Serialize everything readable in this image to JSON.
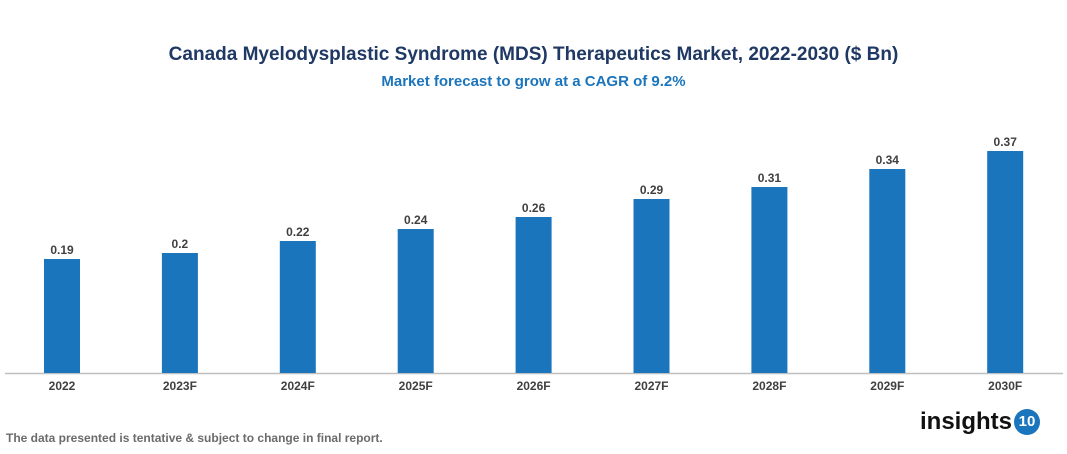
{
  "chart_data": {
    "type": "bar",
    "title": "Canada Myelodysplastic Syndrome (MDS) Therapeutics Market, 2022-2030 ($ Bn)",
    "subtitle": "Market forecast to grow at a CAGR of 9.2%",
    "categories": [
      "2022",
      "2023F",
      "2024F",
      "2025F",
      "2026F",
      "2027F",
      "2028F",
      "2029F",
      "2030F"
    ],
    "values": [
      0.19,
      0.2,
      0.22,
      0.24,
      0.26,
      0.29,
      0.31,
      0.34,
      0.37
    ],
    "labels": [
      "0.19",
      "0.2",
      "0.22",
      "0.24",
      "0.26",
      "0.29",
      "0.31",
      "0.34",
      "0.37"
    ],
    "xlabel": "",
    "ylabel": "",
    "ylim": [
      0,
      0.4
    ],
    "grid": false,
    "bar_color": "#1b75bc"
  },
  "footer": {
    "disclaimer": "The data presented is tentative & subject to change in final report."
  },
  "logo": {
    "text": "insights",
    "number": "10"
  }
}
